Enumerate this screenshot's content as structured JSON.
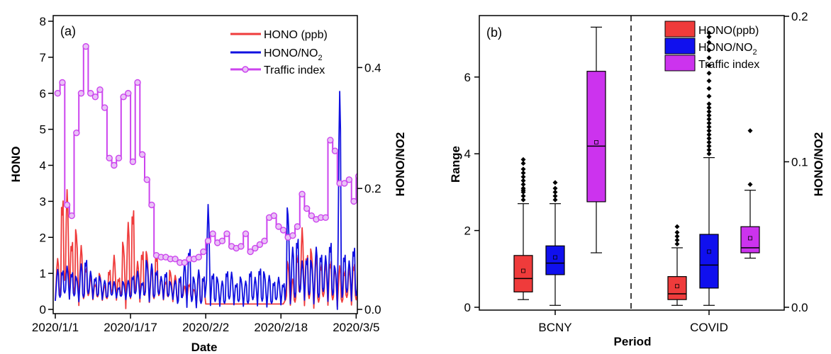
{
  "panel_a": {
    "label": "(a)",
    "xlabel": "Date",
    "ylabel_left": "HONO",
    "ylabel_right": "HONO/NO2",
    "x_ticks": [
      "2020/1/1",
      "2020/1/17",
      "2020/2/2",
      "2020/2/18",
      "2020/3/5"
    ],
    "y_left_ticks": [
      "0",
      "1",
      "2",
      "3",
      "4",
      "5",
      "6",
      "7",
      "8"
    ],
    "y_right_ticks": [
      "0.0",
      "0.2",
      "0.4"
    ],
    "legend": [
      "HONO (ppb)",
      "HONO/NO",
      "Traffic index"
    ],
    "colors": {
      "hono": "#ef3b3b",
      "ratio": "#1010e0",
      "traffic": "#cc44ee"
    }
  },
  "panel_b": {
    "label": "(b)",
    "xlabel": "Period",
    "ylabel_left": "Range",
    "ylabel_right": "HONO/NO2",
    "periods": [
      "BCNY",
      "COVID"
    ],
    "y_left_ticks": [
      "0",
      "2",
      "4",
      "6"
    ],
    "y_right_ticks": [
      "0.0",
      "0.1",
      "0.2"
    ],
    "legend": [
      "HONO(ppb)",
      "HONO/NO",
      "Traffic index"
    ],
    "colors": {
      "hono": "#ef3b3b",
      "ratio": "#1010ee",
      "traffic": "#cc33ee"
    }
  },
  "chart_data": [
    {
      "type": "line",
      "panel": "a",
      "xlabel": "Date",
      "ylabel": "HONO",
      "ylabel_right": "HONO/NO2",
      "xlim": [
        "2020/1/1",
        "2020/3/5"
      ],
      "ylim": [
        0,
        8
      ],
      "ylim_right": [
        0,
        0.5
      ],
      "legend_position": "top-right",
      "series": [
        {
          "name": "Traffic index",
          "axis": "left",
          "x_day": [
            0,
            1,
            2,
            3,
            4,
            5,
            6,
            7,
            8,
            9,
            10,
            11,
            12,
            13,
            14,
            15,
            16,
            17,
            18,
            19,
            20,
            21,
            22,
            23,
            24,
            25,
            26,
            27,
            28,
            29,
            30,
            31,
            32,
            33,
            34,
            35,
            36,
            37,
            38,
            39,
            40,
            41,
            42,
            43,
            44,
            45,
            46,
            47,
            48,
            49,
            50,
            51,
            52,
            53,
            54,
            55,
            56,
            57,
            58,
            59,
            60,
            61,
            62,
            63,
            64
          ],
          "values": [
            6.0,
            6.3,
            2.9,
            2.6,
            4.9,
            6.0,
            7.3,
            6.0,
            5.9,
            6.1,
            5.6,
            4.2,
            4.0,
            4.2,
            5.9,
            6.0,
            4.1,
            6.3,
            4.3,
            3.6,
            2.9,
            1.5,
            1.45,
            1.45,
            1.4,
            1.4,
            1.3,
            1.3,
            1.4,
            1.4,
            1.45,
            1.6,
            1.9,
            2.1,
            1.85,
            1.9,
            2.1,
            1.75,
            1.7,
            1.75,
            2.1,
            1.6,
            1.7,
            1.8,
            1.9,
            2.55,
            2.6,
            2.3,
            2.2,
            2.0,
            2.05,
            2.3,
            3.2,
            2.8,
            2.6,
            2.5,
            2.55,
            2.55,
            4.7,
            4.4,
            3.5,
            3.5,
            3.6,
            3.0,
            3.7
          ]
        },
        {
          "name": "HONO (ppb)",
          "axis": "left",
          "peaks_day": [
            0,
            1,
            2,
            3,
            4,
            5,
            6,
            7,
            8,
            9,
            10,
            11,
            12,
            13,
            14,
            15,
            16,
            17,
            18,
            19,
            20,
            21,
            22,
            23,
            24,
            25,
            26,
            27,
            28,
            29,
            30,
            31,
            32,
            33,
            34,
            35,
            36,
            37,
            38,
            39,
            40,
            41,
            42,
            43,
            44,
            45,
            46,
            47,
            48,
            49,
            50,
            51,
            52,
            53,
            54,
            55,
            56,
            57,
            58,
            59,
            60,
            61,
            62,
            63,
            64
          ],
          "peaks": [
            1.5,
            3.4,
            3.8,
            2.2,
            2.5,
            1.9,
            1.3,
            1.0,
            0.8,
            1.1,
            0.7,
            1.2,
            1.7,
            1.0,
            2.1,
            2.6,
            3.1,
            1.5,
            1.9,
            1.8,
            1.2,
            1.7,
            1.0,
            0.9,
            1.2,
            1.0,
            0.9,
            0.7,
            0.8,
            0.6,
            1.1,
            1.0,
            0.6,
            1.0,
            0.6,
            1.2,
            1.5,
            1.4,
            1.1,
            1.1,
            1.2,
            1.4,
            1.1,
            1.0,
            0.9,
            1.6,
            1.2,
            1.8,
            2.4,
            1.5,
            0.9,
            1.7,
            2.6,
            1.8,
            1.9,
            1.6,
            1.4,
            1.5,
            1.6,
            1.3,
            1.3,
            1.2,
            1.3,
            1.5,
            1.3
          ],
          "troughs": [
            0.4,
            0.4,
            0.4,
            0.4,
            0.3,
            0.3,
            0.3,
            0.3,
            0.3,
            0.3,
            0.3,
            0.3,
            0.3,
            0.3,
            0.3,
            0.3,
            0.3,
            0.3,
            0.3,
            0.3,
            0.3,
            0.3,
            0.3,
            0.3,
            0.3,
            0.3,
            0.3,
            0.3,
            0.3,
            0.3,
            0.2,
            0.2,
            0.2,
            0.2,
            0.2,
            0.2,
            0.2,
            0.2,
            0.2,
            0.2,
            0.2,
            0.2,
            0.2,
            0.2,
            0.2,
            0.2,
            0.2,
            0.2,
            0.2,
            0.2,
            0.2,
            0.2,
            0.2,
            0.2,
            0.2,
            0.2,
            0.2,
            0.2,
            0.2,
            0.2,
            0.2,
            0.2,
            0.2,
            0.2,
            0.2
          ],
          "flat_gap_days": [
            [
              32,
              49
            ]
          ],
          "flat_value": 0.15
        },
        {
          "name": "HONO/NO2",
          "axis": "right",
          "peaks_day": [
            0,
            1,
            2,
            3,
            4,
            5,
            6,
            7,
            8,
            9,
            10,
            11,
            12,
            13,
            14,
            15,
            16,
            17,
            18,
            19,
            20,
            21,
            22,
            23,
            24,
            25,
            26,
            27,
            28,
            29,
            30,
            31,
            32,
            33,
            34,
            35,
            36,
            37,
            38,
            39,
            40,
            41,
            42,
            43,
            44,
            45,
            46,
            47,
            48,
            49,
            50,
            51,
            52,
            53,
            54,
            55,
            56,
            57,
            58,
            59,
            60,
            61,
            62,
            63,
            64
          ],
          "peaks": [
            0.07,
            0.07,
            0.08,
            0.07,
            0.06,
            0.08,
            0.09,
            0.07,
            0.06,
            0.06,
            0.05,
            0.05,
            0.05,
            0.04,
            0.05,
            0.05,
            0.06,
            0.07,
            0.05,
            0.09,
            0.08,
            0.07,
            0.06,
            0.07,
            0.05,
            0.05,
            0.06,
            0.09,
            0.12,
            0.06,
            0.07,
            0.06,
            0.2,
            0.07,
            0.06,
            0.05,
            0.07,
            0.07,
            0.05,
            0.06,
            0.05,
            0.07,
            0.06,
            0.08,
            0.07,
            0.06,
            0.05,
            0.06,
            0.05,
            0.19,
            0.11,
            0.13,
            0.09,
            0.1,
            0.09,
            0.11,
            0.1,
            0.1,
            0.13,
            0.08,
            0.39,
            0.1,
            0.09,
            0.12,
            0.07
          ],
          "troughs": [
            0.02,
            0.02,
            0.02,
            0.02,
            0.02,
            0.02,
            0.02,
            0.02,
            0.02,
            0.02,
            0.02,
            0.02,
            0.02,
            0.02,
            0.02,
            0.02,
            0.02,
            0.02,
            0.02,
            0.02,
            0.02,
            0.02,
            0.02,
            0.02,
            0.02,
            0.02,
            0.01,
            0.01,
            0.01,
            0.01,
            0.01,
            0.01,
            0.01,
            0.01,
            0.01,
            0.01,
            0.01,
            0.01,
            0.01,
            0.01,
            0.01,
            0.01,
            0.01,
            0.01,
            0.01,
            0.01,
            0.01,
            0.01,
            0.01,
            0.02,
            0.02,
            0.02,
            0.02,
            0.02,
            0.02,
            0.02,
            0.02,
            0.02,
            0.02,
            0.02,
            0.02,
            0.02,
            0.02,
            0.02,
            0.02
          ]
        }
      ]
    },
    {
      "type": "box",
      "panel": "b",
      "xlabel": "Period",
      "ylabel": "Range",
      "ylabel_right": "HONO/NO2",
      "categories": [
        "BCNY",
        "COVID"
      ],
      "ylim": [
        0,
        7.5
      ],
      "ylim_right": [
        0,
        0.2
      ],
      "legend_position": "top-right",
      "divider_between_categories": true,
      "boxes": [
        {
          "period": "BCNY",
          "series": "HONO(ppb)",
          "whisker_low": 0.2,
          "q1": 0.4,
          "median": 0.75,
          "mean": 0.95,
          "q3": 1.35,
          "whisker_high": 2.7,
          "outliers": [
            2.8,
            2.9,
            3.0,
            3.05,
            3.1,
            3.2,
            3.3,
            3.4,
            3.5,
            3.6,
            3.75,
            3.85
          ]
        },
        {
          "period": "BCNY",
          "series": "HONO/NO2",
          "whisker_low": 0.05,
          "q1": 0.85,
          "median": 1.15,
          "mean": 1.3,
          "q3": 1.6,
          "whisker_high": 2.7,
          "outliers": [
            2.8,
            2.9,
            3.0,
            3.1,
            3.25
          ]
        },
        {
          "period": "BCNY",
          "series": "Traffic index",
          "whisker_low": 1.42,
          "q1": 2.75,
          "median": 4.2,
          "mean": 4.3,
          "q3": 6.15,
          "whisker_high": 7.3,
          "outliers": []
        },
        {
          "period": "COVID",
          "series": "HONO(ppb)",
          "whisker_low": 0.05,
          "q1": 0.2,
          "median": 0.35,
          "mean": 0.55,
          "q3": 0.8,
          "whisker_high": 1.55,
          "outliers": [
            1.65,
            1.75,
            1.85,
            1.95,
            2.1
          ]
        },
        {
          "period": "COVID",
          "series": "HONO/NO2",
          "whisker_low": 0.05,
          "q1": 0.5,
          "median": 1.1,
          "mean": 1.45,
          "q3": 1.9,
          "whisker_high": 3.9,
          "outliers": [
            4.0,
            4.1,
            4.2,
            4.3,
            4.4,
            4.5,
            4.6,
            4.7,
            4.8,
            4.9,
            5.0,
            5.1,
            5.2,
            5.3,
            5.5,
            5.7,
            5.9,
            6.1,
            6.3,
            6.5,
            6.7,
            6.9,
            7.05,
            7.15
          ]
        },
        {
          "period": "COVID",
          "series": "Traffic index",
          "whisker_low": 1.28,
          "q1": 1.42,
          "median": 1.55,
          "mean": 1.8,
          "q3": 2.1,
          "whisker_high": 3.05,
          "outliers": [
            3.2,
            4.6
          ]
        }
      ]
    }
  ]
}
